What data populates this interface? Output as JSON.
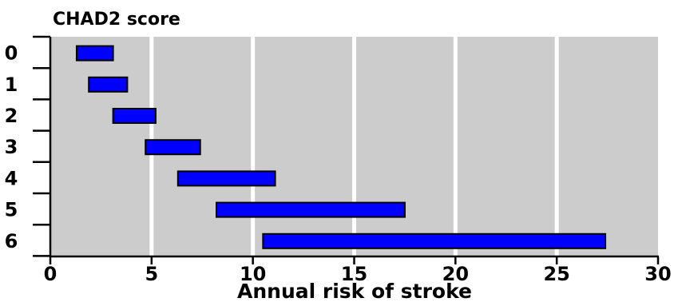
{
  "chart_data": {
    "type": "bar",
    "orientation": "horizontal-range",
    "title": "CHAD2 score",
    "xlabel": "Annual risk of stroke",
    "ylabel": "",
    "xlim": [
      0,
      30
    ],
    "x_ticks": [
      "0",
      "5",
      "10",
      "15",
      "20",
      "25",
      "30"
    ],
    "categories": [
      "0",
      "1",
      "2",
      "3",
      "4",
      "5",
      "6"
    ],
    "ranges": [
      [
        1.3,
        3.1
      ],
      [
        1.9,
        3.8
      ],
      [
        3.1,
        5.2
      ],
      [
        4.7,
        7.4
      ],
      [
        6.3,
        11.1
      ],
      [
        8.2,
        17.5
      ],
      [
        10.5,
        27.4
      ]
    ],
    "grid": "vertical",
    "colors": {
      "bar_fill": "#0000ff",
      "bar_stroke": "#000000",
      "plot_background": "#cccccc",
      "grid": "#ffffff",
      "axis": "#000000"
    }
  }
}
